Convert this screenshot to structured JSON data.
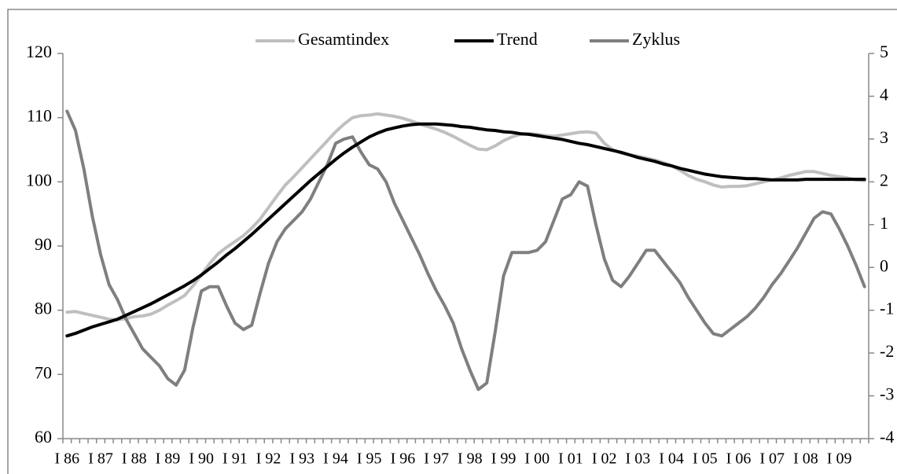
{
  "chart_data": {
    "type": "line",
    "categories": [
      "I 86",
      null,
      null,
      null,
      "I 87",
      null,
      null,
      null,
      "I 88",
      null,
      null,
      null,
      "I 89",
      null,
      null,
      null,
      "I 90",
      null,
      null,
      null,
      "I 91",
      null,
      null,
      null,
      "I 92",
      null,
      null,
      null,
      "I 93",
      null,
      null,
      null,
      "I 94",
      null,
      null,
      null,
      "I 95",
      null,
      null,
      null,
      "I 96",
      null,
      null,
      null,
      "I 97",
      null,
      null,
      null,
      "I 98",
      null,
      null,
      null,
      "I 99",
      null,
      null,
      null,
      "I 00",
      null,
      null,
      null,
      "I 01",
      null,
      null,
      null,
      "I 02",
      null,
      null,
      null,
      "I 03",
      null,
      null,
      null,
      "I 04",
      null,
      null,
      null,
      "I 05",
      null,
      null,
      null,
      "I 06",
      null,
      null,
      null,
      "I 07",
      null,
      null,
      null,
      "I 08",
      null,
      null,
      null,
      "I 09",
      null,
      null,
      null
    ],
    "series": [
      {
        "name": "Gesamtindex",
        "color": "#bfbfbf",
        "values": [
          79.7,
          79.8,
          79.5,
          79.2,
          78.9,
          78.6,
          78.5,
          78.7,
          79.0,
          79.1,
          79.4,
          80.0,
          80.8,
          81.5,
          82.3,
          83.8,
          85.5,
          87.3,
          88.8,
          89.8,
          90.7,
          91.6,
          92.8,
          94.2,
          96.0,
          97.8,
          99.5,
          100.8,
          102.2,
          103.6,
          105.0,
          106.4,
          107.8,
          109.0,
          110.0,
          110.3,
          110.4,
          110.6,
          110.4,
          110.2,
          109.9,
          109.5,
          109.0,
          108.6,
          108.2,
          107.7,
          107.1,
          106.4,
          105.7,
          105.1,
          105.0,
          105.6,
          106.4,
          107.0,
          107.4,
          107.5,
          107.4,
          107.2,
          107.1,
          107.3,
          107.5,
          107.7,
          107.8,
          107.6,
          106.0,
          105.0,
          104.5,
          104.2,
          104.0,
          103.7,
          103.4,
          103.0,
          102.5,
          101.8,
          101.0,
          100.4,
          100.0,
          99.5,
          99.2,
          99.3,
          99.3,
          99.4,
          99.7,
          100.0,
          100.3,
          100.6,
          101.0,
          101.3,
          101.6,
          101.6,
          101.3,
          101.0,
          100.8,
          100.6,
          100.3,
          100.2
        ]
      },
      {
        "name": "Trend",
        "color": "#000000",
        "values": [
          76.0,
          76.4,
          76.9,
          77.4,
          77.8,
          78.2,
          78.6,
          79.2,
          79.8,
          80.4,
          81.0,
          81.7,
          82.4,
          83.1,
          83.8,
          84.6,
          85.5,
          86.5,
          87.5,
          88.6,
          89.6,
          90.7,
          91.8,
          93.0,
          94.2,
          95.4,
          96.6,
          97.8,
          99.0,
          100.2,
          101.3,
          102.4,
          103.5,
          104.5,
          105.4,
          106.2,
          107.0,
          107.6,
          108.1,
          108.4,
          108.7,
          108.9,
          109.0,
          109.0,
          109.0,
          108.9,
          108.8,
          108.6,
          108.5,
          108.3,
          108.1,
          108.0,
          107.8,
          107.7,
          107.5,
          107.4,
          107.2,
          107.0,
          106.8,
          106.6,
          106.3,
          106.0,
          105.8,
          105.5,
          105.2,
          104.9,
          104.6,
          104.2,
          103.8,
          103.5,
          103.2,
          102.8,
          102.5,
          102.1,
          101.8,
          101.5,
          101.2,
          101.0,
          100.8,
          100.7,
          100.6,
          100.5,
          100.5,
          100.4,
          100.3,
          100.3,
          100.3,
          100.3,
          100.4,
          100.4,
          100.4,
          100.4,
          100.4,
          100.4,
          100.4,
          100.4
        ]
      },
      {
        "name": "Zyklus",
        "color": "#7f7f7f",
        "axis": "y2",
        "values": [
          3.65,
          3.2,
          2.3,
          1.2,
          0.3,
          -0.4,
          -0.75,
          -1.2,
          -1.55,
          -1.9,
          -2.1,
          -2.3,
          -2.6,
          -2.75,
          -2.4,
          -1.4,
          -0.55,
          -0.45,
          -0.45,
          -0.9,
          -1.3,
          -1.45,
          -1.35,
          -0.6,
          0.1,
          0.6,
          0.9,
          1.1,
          1.3,
          1.6,
          2.0,
          2.4,
          2.9,
          3.0,
          3.05,
          2.7,
          2.4,
          2.3,
          2.0,
          1.5,
          1.1,
          0.7,
          0.3,
          -0.15,
          -0.55,
          -0.9,
          -1.3,
          -1.9,
          -2.4,
          -2.85,
          -2.7,
          -1.5,
          -0.2,
          0.35,
          0.35,
          0.35,
          0.4,
          0.6,
          1.1,
          1.6,
          1.7,
          2.0,
          1.9,
          1.0,
          0.2,
          -0.3,
          -0.45,
          -0.2,
          0.1,
          0.4,
          0.4,
          0.15,
          -0.1,
          -0.35,
          -0.7,
          -1.0,
          -1.3,
          -1.55,
          -1.6,
          -1.45,
          -1.3,
          -1.15,
          -0.95,
          -0.7,
          -0.4,
          -0.15,
          0.15,
          0.45,
          0.8,
          1.15,
          1.3,
          1.25,
          0.9,
          0.5,
          0.05,
          -0.45
        ]
      }
    ],
    "ylim": [
      60,
      120
    ],
    "yticks": [
      60,
      70,
      80,
      90,
      100,
      110,
      120
    ],
    "y2lim": [
      -4,
      5
    ],
    "y2ticks": [
      5,
      4,
      3,
      2,
      1,
      0,
      -1,
      -2,
      -3,
      -4
    ],
    "grid": false,
    "legend": "top"
  }
}
